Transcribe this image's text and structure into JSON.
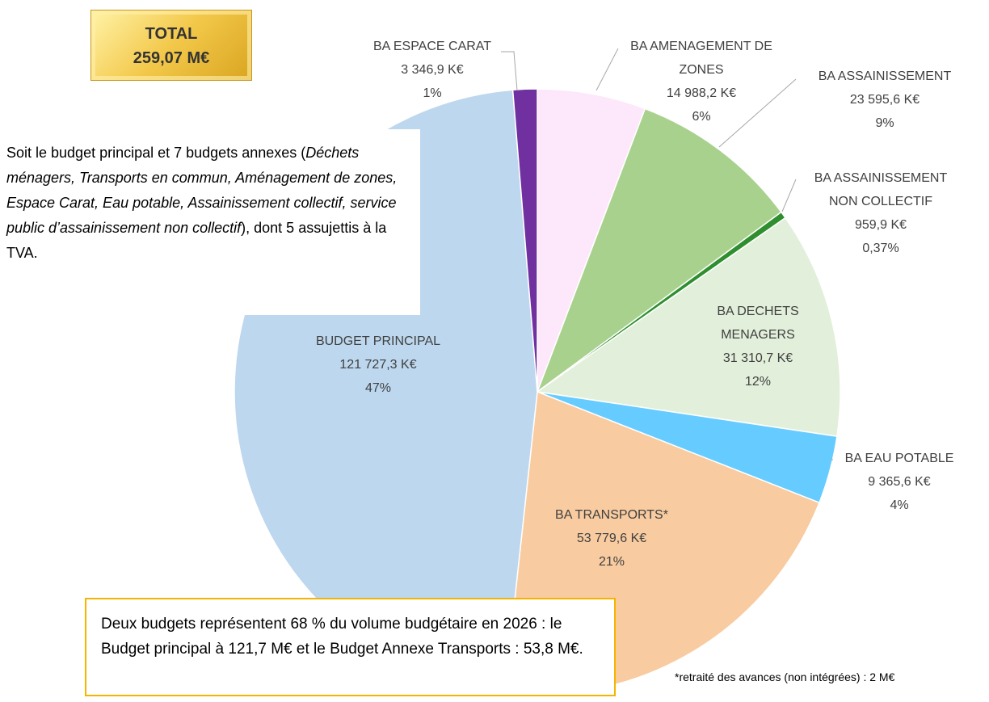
{
  "chart_data": {
    "type": "pie",
    "categories": [
      "BA AMENAGEMENT DE ZONES",
      "BA ASSAINISSEMENT",
      "BA ASSAINISSEMENT NON COLLECTIF",
      "BA DECHETS MENAGERS",
      "BA EAU POTABLE",
      "BA TRANSPORTS*",
      "BUDGET PRINCIPAL",
      "BA ESPACE CARAT"
    ],
    "values": [
      14988.2,
      23595.6,
      959.9,
      31310.7,
      9365.6,
      53779.6,
      121727.3,
      3346.9
    ],
    "value_labels": [
      "14 988,2 K€",
      "23 595,6 K€",
      "959,9 K€",
      "31 310,7 K€",
      "9 365,6 K€",
      "53 779,6 K€",
      "121 727,3 K€",
      "3 346,9 K€"
    ],
    "percent_labels": [
      "6%",
      "9%",
      "0,37%",
      "12%",
      "4%",
      "21%",
      "47%",
      "1%"
    ],
    "colors": [
      "#fce8fa",
      "#a9d18e",
      "#2f8f2f",
      "#e2efda",
      "#66ccff",
      "#f8cba0",
      "#bdd7ee",
      "#7030a0"
    ]
  },
  "total": {
    "label": "TOTAL",
    "value": "259,07 M€"
  },
  "intro": {
    "before": "Soit le budget principal et 7 budgets annexes (",
    "italic": "Déchets ménagers, Transports en commun, Aménagement de zones, Espace Carat, Eau potable, Assainissement collectif, service public d’assainissement non collectif",
    "after": "), dont 5 assujettis à la TVA."
  },
  "note": "Deux budgets représentent 68 % du volume budgétaire en 2026 : le Budget principal à 121,7 M€ et le Budget Annexe Transports : 53,8 M€.",
  "footnote": "*retraité des avances (non intégrées) : 2 M€"
}
